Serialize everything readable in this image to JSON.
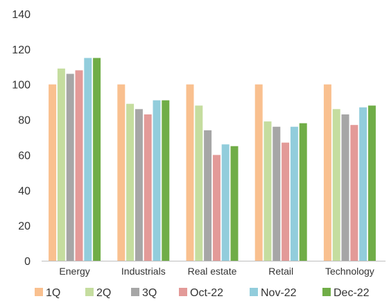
{
  "chart_data": {
    "type": "bar",
    "title": "",
    "xlabel": "",
    "ylabel": "",
    "ylim": [
      0,
      140
    ],
    "yticks": [
      0,
      20,
      40,
      60,
      80,
      100,
      120,
      140
    ],
    "grid": false,
    "legend_position": "bottom",
    "categories": [
      "Energy",
      "Industrials",
      "Real estate",
      "Retail",
      "Technology"
    ],
    "series": [
      {
        "name": "1Q",
        "color": "#f9c08f",
        "values": [
          100,
          100,
          100,
          100,
          100
        ]
      },
      {
        "name": "2Q",
        "color": "#c5dd9f",
        "values": [
          109,
          89,
          88,
          79,
          86
        ]
      },
      {
        "name": "3Q",
        "color": "#a6a6a6",
        "values": [
          106,
          86,
          74,
          76,
          83
        ]
      },
      {
        "name": "Oct-22",
        "color": "#e39a98",
        "values": [
          108,
          83,
          60,
          67,
          77
        ]
      },
      {
        "name": "Nov-22",
        "color": "#92cddc",
        "values": [
          115,
          91,
          66,
          76,
          87
        ]
      },
      {
        "name": "Dec-22",
        "color": "#70ad47",
        "values": [
          115,
          91,
          65,
          78,
          88
        ]
      }
    ]
  }
}
